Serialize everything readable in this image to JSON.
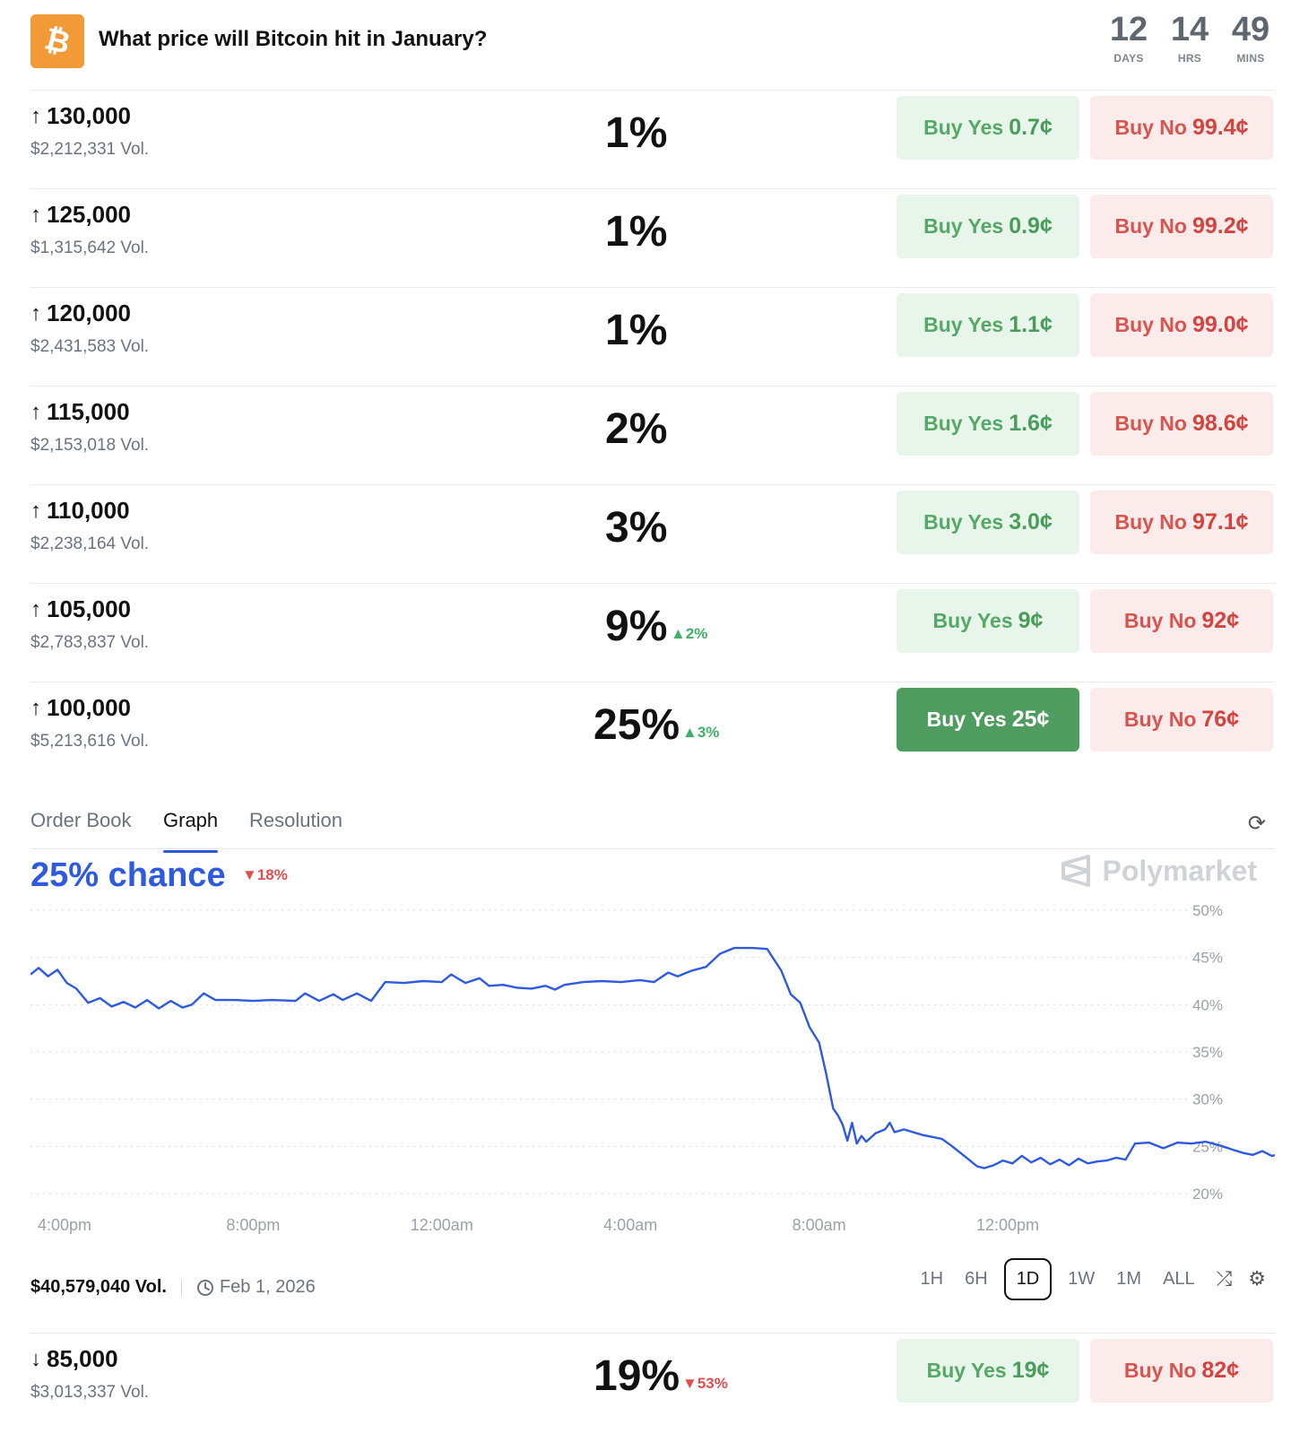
{
  "header": {
    "title": "What price will Bitcoin hit in January?",
    "logo_icon": "bitcoin-icon",
    "countdown": [
      {
        "value": "12",
        "label": "DAYS"
      },
      {
        "value": "14",
        "label": "HRS"
      },
      {
        "value": "49",
        "label": "MINS"
      }
    ]
  },
  "markets": [
    {
      "direction": "↑",
      "strike": "130,000",
      "volume": "$2,212,331 Vol.",
      "probability": "1%",
      "change": "",
      "change_dir": "",
      "yes_label": "Buy Yes",
      "yes_price": "0.7¢",
      "no_label": "Buy No",
      "no_price": "99.4¢",
      "yes_active": false
    },
    {
      "direction": "↑",
      "strike": "125,000",
      "volume": "$1,315,642 Vol.",
      "probability": "1%",
      "change": "",
      "change_dir": "",
      "yes_label": "Buy Yes",
      "yes_price": "0.9¢",
      "no_label": "Buy No",
      "no_price": "99.2¢",
      "yes_active": false
    },
    {
      "direction": "↑",
      "strike": "120,000",
      "volume": "$2,431,583 Vol.",
      "probability": "1%",
      "change": "",
      "change_dir": "",
      "yes_label": "Buy Yes",
      "yes_price": "1.1¢",
      "no_label": "Buy No",
      "no_price": "99.0¢",
      "yes_active": false
    },
    {
      "direction": "↑",
      "strike": "115,000",
      "volume": "$2,153,018 Vol.",
      "probability": "2%",
      "change": "",
      "change_dir": "",
      "yes_label": "Buy Yes",
      "yes_price": "1.6¢",
      "no_label": "Buy No",
      "no_price": "98.6¢",
      "yes_active": false
    },
    {
      "direction": "↑",
      "strike": "110,000",
      "volume": "$2,238,164 Vol.",
      "probability": "3%",
      "change": "",
      "change_dir": "",
      "yes_label": "Buy Yes",
      "yes_price": "3.0¢",
      "no_label": "Buy No",
      "no_price": "97.1¢",
      "yes_active": false
    },
    {
      "direction": "↑",
      "strike": "105,000",
      "volume": "$2,783,837 Vol.",
      "probability": "9%",
      "change": "▲2%",
      "change_dir": "up",
      "yes_label": "Buy Yes",
      "yes_price": "9¢",
      "no_label": "Buy No",
      "no_price": "92¢",
      "yes_active": false
    },
    {
      "direction": "↑",
      "strike": "100,000",
      "volume": "$5,213,616 Vol.",
      "probability": "25%",
      "change": "▲3%",
      "change_dir": "up",
      "yes_label": "Buy Yes",
      "yes_price": "25¢",
      "no_label": "Buy No",
      "no_price": "76¢",
      "yes_active": true
    }
  ],
  "tabs": [
    {
      "label": "Order Book",
      "active": false
    },
    {
      "label": "Graph",
      "active": true
    },
    {
      "label": "Resolution",
      "active": false
    }
  ],
  "graph": {
    "chance": "25% chance",
    "chance_change": "▼18%",
    "brand": "Polymarket",
    "total_volume": "$40,579,040 Vol.",
    "end_date": "Feb 1, 2026",
    "ranges": [
      "1H",
      "6H",
      "1D",
      "1W",
      "1M",
      "ALL"
    ],
    "active_range": "1D",
    "line_color": "#2e5ae0"
  },
  "chart_data": {
    "type": "line",
    "x_ticks": [
      "4:00pm",
      "8:00pm",
      "12:00am",
      "4:00am",
      "8:00am",
      "12:00pm"
    ],
    "y_ticks": [
      "50%",
      "45%",
      "40%",
      "35%",
      "30%",
      "25%",
      "20%"
    ],
    "ylim": [
      20,
      50
    ],
    "grid": true,
    "series": [
      {
        "values": [
          [
            -0.72,
            43.2
          ],
          [
            -0.55,
            43.9
          ],
          [
            -0.35,
            43.0
          ],
          [
            -0.15,
            43.7
          ],
          [
            0.05,
            42.3
          ],
          [
            0.25,
            41.7
          ],
          [
            0.5,
            40.2
          ],
          [
            0.75,
            40.7
          ],
          [
            1.0,
            39.8
          ],
          [
            1.25,
            40.3
          ],
          [
            1.5,
            39.7
          ],
          [
            1.75,
            40.5
          ],
          [
            2.0,
            39.6
          ],
          [
            2.25,
            40.4
          ],
          [
            2.5,
            39.7
          ],
          [
            2.7,
            40.0
          ],
          [
            2.95,
            41.2
          ],
          [
            3.2,
            40.5
          ],
          [
            3.6,
            40.5
          ],
          [
            4.0,
            40.4
          ],
          [
            4.4,
            40.5
          ],
          [
            4.9,
            40.4
          ],
          [
            5.1,
            41.2
          ],
          [
            5.4,
            40.4
          ],
          [
            5.7,
            41.1
          ],
          [
            5.9,
            40.5
          ],
          [
            6.2,
            41.2
          ],
          [
            6.5,
            40.4
          ],
          [
            6.8,
            42.4
          ],
          [
            7.2,
            42.3
          ],
          [
            7.6,
            42.5
          ],
          [
            8.0,
            42.4
          ],
          [
            8.2,
            43.2
          ],
          [
            8.5,
            42.3
          ],
          [
            8.8,
            42.8
          ],
          [
            9.0,
            42.0
          ],
          [
            9.3,
            42.1
          ],
          [
            9.6,
            41.8
          ],
          [
            9.9,
            41.7
          ],
          [
            10.2,
            42.0
          ],
          [
            10.4,
            41.6
          ],
          [
            10.6,
            42.1
          ],
          [
            11.0,
            42.4
          ],
          [
            11.4,
            42.5
          ],
          [
            11.8,
            42.4
          ],
          [
            12.2,
            42.6
          ],
          [
            12.5,
            42.4
          ],
          [
            12.8,
            43.4
          ],
          [
            13.0,
            43.0
          ],
          [
            13.3,
            43.6
          ],
          [
            13.6,
            44.0
          ],
          [
            13.9,
            45.4
          ],
          [
            14.2,
            46.0
          ],
          [
            14.6,
            46.0
          ],
          [
            14.9,
            45.9
          ],
          [
            15.2,
            43.6
          ],
          [
            15.4,
            41.1
          ],
          [
            15.6,
            40.2
          ],
          [
            15.8,
            37.6
          ],
          [
            16.0,
            36.0
          ],
          [
            16.15,
            32.7
          ],
          [
            16.3,
            29.0
          ],
          [
            16.4,
            28.3
          ],
          [
            16.5,
            27.3
          ],
          [
            16.6,
            25.6
          ],
          [
            16.7,
            27.5
          ],
          [
            16.8,
            25.3
          ],
          [
            16.9,
            26.1
          ],
          [
            17.0,
            25.5
          ],
          [
            17.2,
            26.4
          ],
          [
            17.4,
            26.8
          ],
          [
            17.5,
            27.5
          ],
          [
            17.6,
            26.5
          ],
          [
            17.8,
            26.8
          ],
          [
            18.2,
            26.2
          ],
          [
            18.6,
            25.8
          ],
          [
            18.8,
            25.1
          ],
          [
            19.0,
            24.3
          ],
          [
            19.2,
            23.5
          ],
          [
            19.35,
            22.9
          ],
          [
            19.5,
            22.7
          ],
          [
            19.7,
            23.0
          ],
          [
            19.9,
            23.5
          ],
          [
            20.1,
            23.2
          ],
          [
            20.3,
            24.0
          ],
          [
            20.5,
            23.3
          ],
          [
            20.7,
            23.8
          ],
          [
            20.9,
            23.1
          ],
          [
            21.1,
            23.6
          ],
          [
            21.3,
            23.0
          ],
          [
            21.5,
            23.7
          ],
          [
            21.7,
            23.2
          ],
          [
            21.9,
            23.4
          ],
          [
            22.1,
            23.5
          ],
          [
            22.3,
            23.8
          ],
          [
            22.5,
            23.6
          ],
          [
            22.7,
            25.3
          ],
          [
            23.0,
            25.4
          ],
          [
            23.3,
            24.8
          ],
          [
            23.6,
            25.4
          ],
          [
            23.9,
            25.3
          ],
          [
            24.2,
            25.5
          ],
          [
            24.5,
            25.1
          ],
          [
            24.8,
            24.6
          ],
          [
            25.0,
            24.3
          ],
          [
            25.2,
            24.1
          ],
          [
            25.4,
            24.5
          ],
          [
            25.6,
            24.0
          ],
          [
            25.8,
            24.2
          ],
          [
            26.0,
            24.7
          ],
          [
            26.4,
            24.7
          ],
          [
            26.8,
            24.7
          ],
          [
            27.2,
            24.7
          ],
          [
            27.6,
            24.7
          ],
          [
            28.0,
            24.7
          ],
          [
            28.4,
            24.7
          ],
          [
            28.6,
            25.0
          ],
          [
            28.8,
            26.6
          ],
          [
            29.0,
            26.0
          ],
          [
            29.3,
            26.5
          ],
          [
            29.6,
            26.9
          ],
          [
            30.0,
            27.0
          ],
          [
            30.2,
            25.8
          ],
          [
            30.4,
            26.1
          ],
          [
            30.6,
            25.9
          ],
          [
            30.8,
            26.1
          ],
          [
            31.0,
            25.6
          ],
          [
            31.2,
            25.0
          ],
          [
            31.4,
            25.4
          ],
          [
            31.6,
            25.9
          ],
          [
            31.8,
            25.8
          ],
          [
            32.0,
            26.2
          ],
          [
            32.4,
            25.9
          ],
          [
            32.8,
            26.1
          ],
          [
            33.2,
            26.1
          ],
          [
            33.6,
            25.8
          ],
          [
            34.0,
            26.0
          ],
          [
            34.4,
            25.9
          ],
          [
            34.8,
            25.6
          ],
          [
            35.0,
            25.2
          ],
          [
            35.2,
            25.2
          ],
          [
            35.6,
            24.6
          ],
          [
            35.9,
            24.6
          ],
          [
            36.1,
            24.6
          ],
          [
            36.4,
            24.4
          ]
        ]
      }
    ]
  },
  "last_market": {
    "direction": "↓",
    "strike": "85,000",
    "volume": "$3,013,337 Vol.",
    "probability": "19%",
    "change": "▼53%",
    "change_dir": "down",
    "yes_label": "Buy Yes",
    "yes_price": "19¢",
    "no_label": "Buy No",
    "no_price": "82¢",
    "yes_active": false
  }
}
